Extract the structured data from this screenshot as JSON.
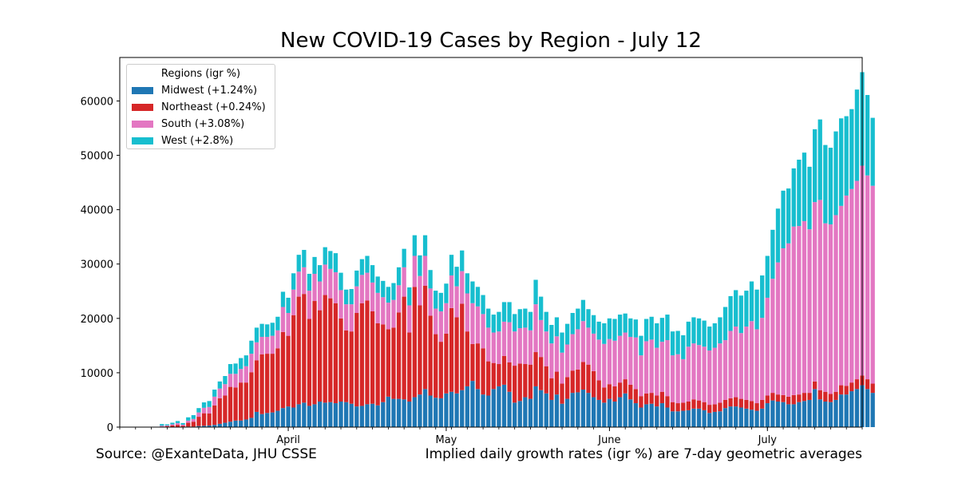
{
  "chart_data": {
    "type": "bar",
    "stacked": true,
    "title": "New COVID-19 Cases by Region - July 12",
    "xlabel": "",
    "ylabel": "",
    "ylim": [
      0,
      68000
    ],
    "yticks": [
      0,
      10000,
      20000,
      30000,
      40000,
      50000,
      60000
    ],
    "xtick_labels": [
      {
        "date": "2020-04-01",
        "label": "April"
      },
      {
        "date": "2020-05-01",
        "label": "May"
      },
      {
        "date": "2020-06-01",
        "label": "June"
      },
      {
        "date": "2020-07-01",
        "label": "July"
      }
    ],
    "x_start": "2020-03-01",
    "xlim": [
      "2020-02-29",
      "2020-07-19"
    ],
    "grid": false,
    "legend": {
      "title": "Regions (igr %)",
      "placement": "top-left"
    },
    "series": [
      {
        "name": "Midwest (+1.24%)",
        "color": "#1f77b4",
        "values": [
          0,
          0,
          0,
          0,
          0,
          0,
          0,
          10,
          10,
          10,
          20,
          50,
          100,
          100,
          200,
          250,
          300,
          400,
          600,
          800,
          1000,
          1200,
          1200,
          1400,
          1700,
          2800,
          2400,
          2600,
          2700,
          3000,
          3500,
          3800,
          3600,
          4200,
          4500,
          3900,
          4200,
          4700,
          4500,
          4600,
          4400,
          4700,
          4600,
          4300,
          3800,
          3900,
          4200,
          4300,
          4000,
          4600,
          5600,
          5200,
          5200,
          5100,
          4700,
          5500,
          6000,
          7000,
          5800,
          5400,
          5300,
          6200,
          6500,
          6200,
          6800,
          7500,
          8500,
          7000,
          6000,
          5800,
          7000,
          7500,
          7800,
          6500,
          4500,
          4800,
          5500,
          5200,
          7500,
          6800,
          6200,
          5000,
          6000,
          4300,
          5200,
          6300,
          6400,
          6900,
          6300,
          5500,
          5000,
          4500,
          5200,
          4700,
          5500,
          6200,
          5100,
          4400,
          3600,
          4200,
          4300,
          3800,
          4400,
          3600,
          2900,
          2900,
          3000,
          3100,
          3400,
          3400,
          3100,
          2600,
          2800,
          2900,
          3500,
          3800,
          3800,
          3600,
          3400,
          3200,
          3000,
          3400,
          4400,
          4900,
          4700,
          4600,
          4200,
          4200,
          4600,
          4800,
          5000,
          7000,
          5100,
          4700,
          4600,
          5000,
          6000,
          6000,
          6600,
          7000,
          7700,
          7000,
          6300
        ]
      },
      {
        "name": "Northeast (+0.24%)",
        "color": "#d62728",
        "values": [
          0,
          0,
          0,
          0,
          0,
          0,
          0,
          100,
          150,
          300,
          400,
          200,
          700,
          900,
          1700,
          2300,
          2200,
          3600,
          4700,
          5000,
          6400,
          6100,
          7000,
          6800,
          8400,
          9500,
          11000,
          10900,
          10800,
          11500,
          14000,
          13000,
          17000,
          19800,
          20000,
          16000,
          19000,
          16800,
          19800,
          19100,
          18400,
          15300,
          13200,
          13300,
          17200,
          18900,
          19100,
          17000,
          15100,
          14300,
          12400,
          13100,
          15900,
          18900,
          12700,
          20300,
          16400,
          19000,
          14700,
          11700,
          10400,
          11000,
          15400,
          14000,
          15900,
          10100,
          6800,
          8400,
          8500,
          6300,
          4800,
          4100,
          5300,
          5400,
          6800,
          6900,
          6100,
          6300,
          6300,
          6100,
          5000,
          4000,
          4200,
          3700,
          4000,
          4100,
          4200,
          5100,
          5200,
          4800,
          3600,
          2800,
          2700,
          2800,
          2700,
          2600,
          2700,
          2600,
          2100,
          2000,
          2000,
          2000,
          2100,
          2100,
          1700,
          1500,
          1500,
          1600,
          1700,
          1500,
          1500,
          1500,
          1400,
          1600,
          1500,
          1500,
          1700,
          1600,
          1600,
          1600,
          1400,
          1600,
          1400,
          1400,
          1300,
          1300,
          1400,
          1700,
          1400,
          1500,
          1300,
          1400,
          1700,
          1800,
          1500,
          1500,
          1700,
          1600,
          1600,
          1800,
          1800,
          1800,
          1700
        ]
      },
      {
        "name": "South (+3.08%)",
        "color": "#e377c2",
        "values": [
          0,
          0,
          0,
          0,
          0,
          0,
          0,
          150,
          150,
          200,
          300,
          200,
          400,
          500,
          800,
          1000,
          1200,
          1600,
          1800,
          2100,
          2400,
          2500,
          2500,
          3000,
          3400,
          3300,
          3200,
          3100,
          3300,
          3300,
          4600,
          4200,
          4700,
          4600,
          4900,
          5200,
          5000,
          5300,
          5600,
          5400,
          5700,
          5200,
          4800,
          5000,
          4900,
          5200,
          5100,
          5300,
          5600,
          5000,
          4900,
          5100,
          5000,
          5400,
          5000,
          5700,
          5400,
          5500,
          5000,
          4700,
          5600,
          5600,
          6000,
          5700,
          6000,
          7000,
          7500,
          6800,
          6300,
          6200,
          5600,
          6000,
          6300,
          7400,
          6300,
          6500,
          6700,
          6300,
          8800,
          6800,
          6400,
          6400,
          6500,
          5700,
          6000,
          6700,
          7400,
          7500,
          6800,
          6900,
          7500,
          8000,
          8300,
          8400,
          8600,
          8600,
          8800,
          9500,
          7500,
          9600,
          9800,
          8800,
          9200,
          10300,
          8600,
          9000,
          8000,
          10100,
          10300,
          10200,
          10200,
          10000,
          10400,
          10900,
          11000,
          12400,
          13000,
          12100,
          13500,
          14700,
          13600,
          15100,
          18000,
          21000,
          24300,
          27000,
          28200,
          31000,
          31000,
          31600,
          30100,
          33000,
          35000,
          31000,
          31200,
          32500,
          33000,
          35000,
          35600,
          36500,
          38600,
          37500,
          36400
        ]
      },
      {
        "name": "West (+2.8%)",
        "color": "#17becf",
        "values": [
          0,
          0,
          0,
          0,
          0,
          0,
          0,
          300,
          200,
          300,
          400,
          300,
          600,
          700,
          800,
          1000,
          1100,
          1300,
          1300,
          1500,
          1800,
          1900,
          2000,
          2000,
          2400,
          2700,
          2400,
          2300,
          2400,
          2500,
          2800,
          2800,
          3000,
          3100,
          3200,
          3100,
          3100,
          3000,
          3200,
          3300,
          3500,
          3200,
          2700,
          2800,
          2900,
          2900,
          3100,
          3200,
          3000,
          3000,
          2900,
          3100,
          3300,
          3400,
          3300,
          3800,
          3800,
          3800,
          3400,
          3300,
          3400,
          3600,
          3800,
          3600,
          3800,
          3700,
          4000,
          3600,
          3500,
          3500,
          3300,
          3600,
          3600,
          3700,
          3200,
          3500,
          3500,
          3400,
          4500,
          4300,
          3600,
          3400,
          3500,
          3700,
          3800,
          3900,
          3800,
          3900,
          3400,
          3400,
          3300,
          3800,
          3800,
          4000,
          3900,
          3500,
          3400,
          3300,
          3600,
          4100,
          4200,
          4500,
          4400,
          4700,
          4400,
          4300,
          4400,
          4600,
          4800,
          4900,
          4800,
          4400,
          4500,
          4800,
          6100,
          6400,
          6700,
          6900,
          6600,
          7300,
          7300,
          7800,
          7700,
          9000,
          9900,
          10600,
          10100,
          10700,
          12200,
          12600,
          11500,
          13400,
          14800,
          14400,
          14100,
          15400,
          16100,
          14600,
          14700,
          16800,
          17200,
          14800,
          12500
        ]
      }
    ]
  },
  "footer": {
    "source": "Source: @ExanteData, JHU CSSE",
    "note": "Implied daily growth rates (igr %) are 7-day geometric averages"
  }
}
